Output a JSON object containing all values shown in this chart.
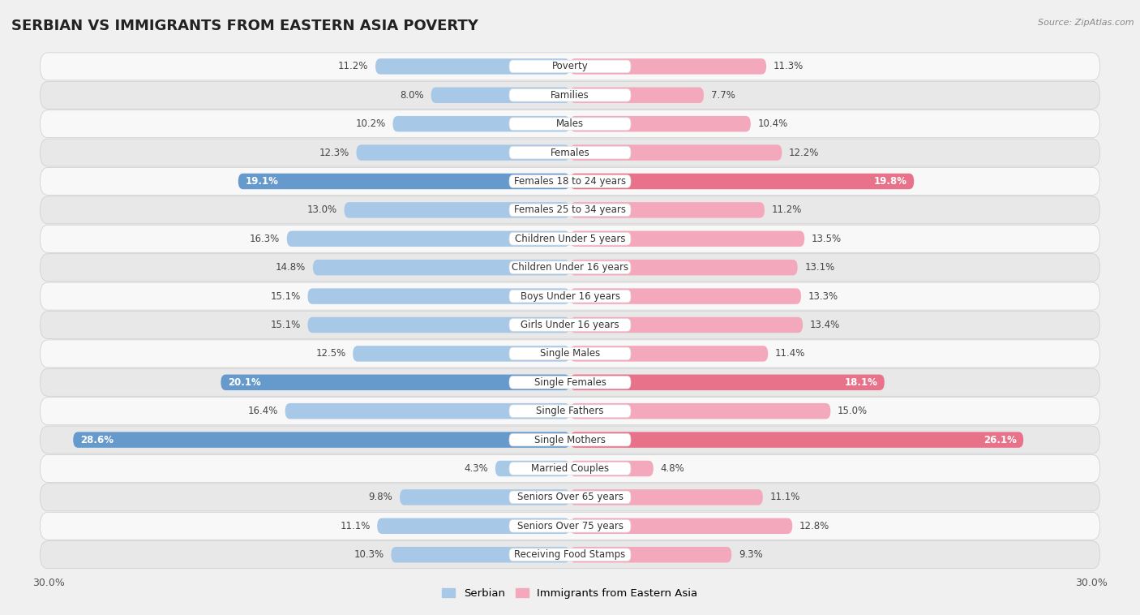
{
  "title": "SERBIAN VS IMMIGRANTS FROM EASTERN ASIA POVERTY",
  "source": "Source: ZipAtlas.com",
  "categories": [
    "Poverty",
    "Families",
    "Males",
    "Females",
    "Females 18 to 24 years",
    "Females 25 to 34 years",
    "Children Under 5 years",
    "Children Under 16 years",
    "Boys Under 16 years",
    "Girls Under 16 years",
    "Single Males",
    "Single Females",
    "Single Fathers",
    "Single Mothers",
    "Married Couples",
    "Seniors Over 65 years",
    "Seniors Over 75 years",
    "Receiving Food Stamps"
  ],
  "serbian": [
    11.2,
    8.0,
    10.2,
    12.3,
    19.1,
    13.0,
    16.3,
    14.8,
    15.1,
    15.1,
    12.5,
    20.1,
    16.4,
    28.6,
    4.3,
    9.8,
    11.1,
    10.3
  ],
  "eastern_asia": [
    11.3,
    7.7,
    10.4,
    12.2,
    19.8,
    11.2,
    13.5,
    13.1,
    13.3,
    13.4,
    11.4,
    18.1,
    15.0,
    26.1,
    4.8,
    11.1,
    12.8,
    9.3
  ],
  "serbian_color": "#a8c8e8",
  "eastern_asia_color": "#f4a8bc",
  "serbian_highlight_color": "#6699cc",
  "eastern_asia_highlight_color": "#e8728a",
  "highlight_rows": [
    4,
    11,
    13
  ],
  "bar_height": 0.55,
  "max_val": 30,
  "background_color": "#f0f0f0",
  "row_bg_even": "#f8f8f8",
  "row_bg_odd": "#e8e8e8",
  "legend_serbian": "Serbian",
  "legend_eastern_asia": "Immigrants from Eastern Asia",
  "label_fontsize": 8.5,
  "cat_fontsize": 8.5,
  "title_fontsize": 13
}
